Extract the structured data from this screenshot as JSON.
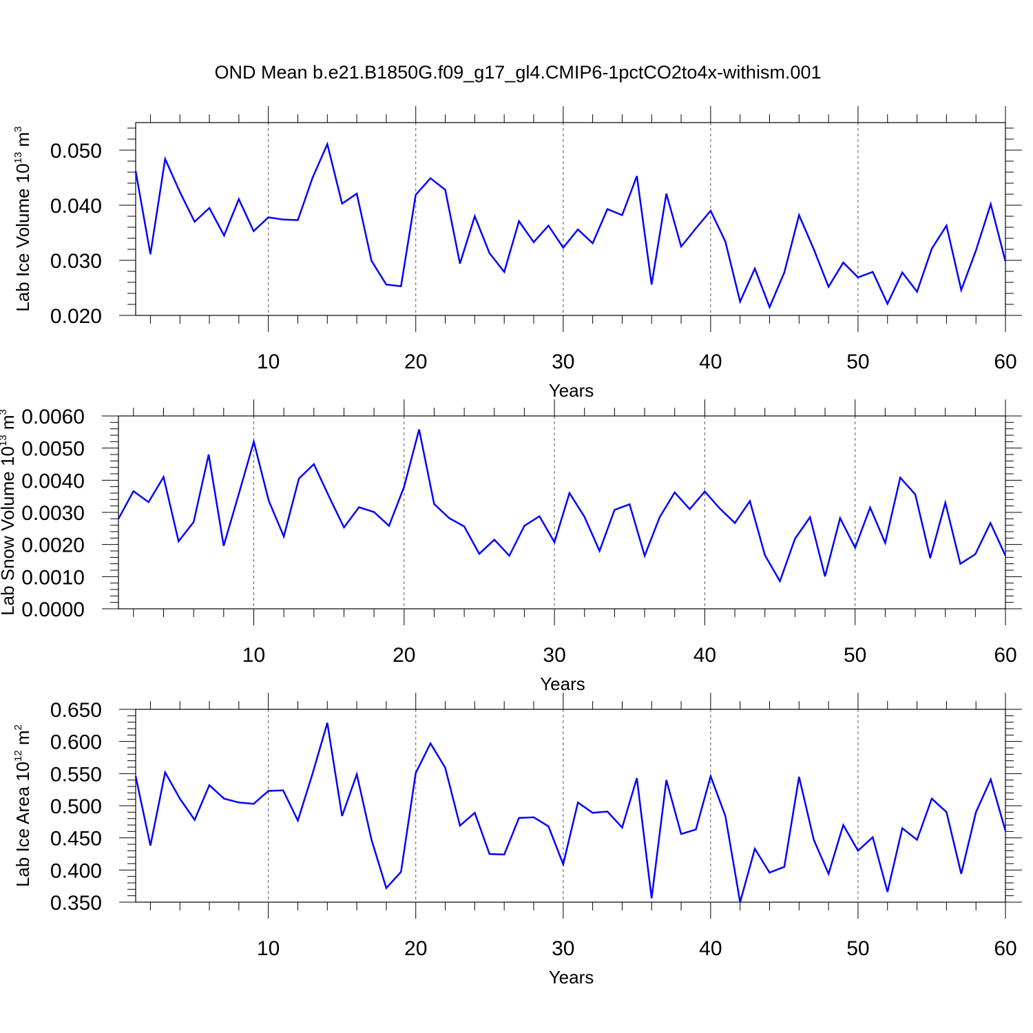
{
  "title": "OND Mean b.e21.B1850G.f09_g17_gl4.CMIP6-1pctCO2to4x-withism.001",
  "colors": {
    "line": "#0000ff",
    "axis": "#000000",
    "grid": "#555555"
  },
  "chart_data": [
    {
      "type": "line",
      "xlabel": "Years",
      "ylabel_parts": {
        "pre": "Lab Ice Volume 10",
        "exp": "13",
        "mid": " m",
        "unit_exp": "3"
      },
      "xlim": [
        1,
        60
      ],
      "ylim": [
        0.02,
        0.055
      ],
      "xticks": [
        10,
        20,
        30,
        40,
        50,
        60
      ],
      "xtick_labels": [
        "10",
        "20",
        "30",
        "40",
        "50",
        "60"
      ],
      "yticks": [
        0.02,
        0.03,
        0.04,
        0.05
      ],
      "ytick_labels": [
        "0.020",
        "0.030",
        "0.040",
        "0.050"
      ],
      "grid": "vertical dashed at major x ticks",
      "x": [
        1,
        2,
        3,
        4,
        5,
        6,
        7,
        8,
        9,
        10,
        11,
        12,
        13,
        14,
        15,
        16,
        17,
        18,
        19,
        20,
        21,
        22,
        23,
        24,
        25,
        26,
        27,
        28,
        29,
        30,
        31,
        32,
        33,
        34,
        35,
        36,
        37,
        38,
        39,
        40,
        41,
        42,
        43,
        44,
        45,
        46,
        47,
        48,
        49,
        50,
        51,
        52,
        53,
        54,
        55,
        56,
        57,
        58,
        59,
        60
      ],
      "values": [
        0.0462,
        0.0311,
        0.0484,
        0.0424,
        0.037,
        0.0395,
        0.0345,
        0.0411,
        0.0353,
        0.0378,
        0.0374,
        0.0373,
        0.045,
        0.0511,
        0.0403,
        0.0421,
        0.0299,
        0.0256,
        0.0253,
        0.0419,
        0.0449,
        0.0428,
        0.0294,
        0.038,
        0.0313,
        0.0279,
        0.0371,
        0.0333,
        0.0363,
        0.0323,
        0.0356,
        0.0331,
        0.0393,
        0.0382,
        0.0453,
        0.0256,
        0.0421,
        0.0325,
        0.0358,
        0.039,
        0.0334,
        0.0225,
        0.0285,
        0.0215,
        0.0278,
        0.0382,
        0.032,
        0.0252,
        0.0296,
        0.0269,
        0.0279,
        0.0221,
        0.0278,
        0.0243,
        0.0321,
        0.0363,
        0.0246,
        0.0318,
        0.0402,
        0.0298
      ]
    },
    {
      "type": "line",
      "xlabel": "Years",
      "ylabel_parts": {
        "pre": "Lab Snow Volume 10",
        "exp": "13",
        "mid": " m",
        "unit_exp": "3"
      },
      "xlim": [
        1,
        60
      ],
      "ylim": [
        0.0,
        0.006
      ],
      "xticks": [
        10,
        20,
        30,
        40,
        50,
        60
      ],
      "xtick_labels": [
        "10",
        "20",
        "30",
        "40",
        "50",
        "60"
      ],
      "yticks": [
        0.0,
        0.001,
        0.002,
        0.003,
        0.004,
        0.005,
        0.006
      ],
      "ytick_labels": [
        "0.0000",
        "0.0010",
        "0.0020",
        "0.0030",
        "0.0040",
        "0.0050",
        "0.0060"
      ],
      "grid": "vertical dashed at major x ticks",
      "x": [
        1,
        2,
        3,
        4,
        5,
        6,
        7,
        8,
        9,
        10,
        11,
        12,
        13,
        14,
        15,
        16,
        17,
        18,
        19,
        20,
        21,
        22,
        23,
        24,
        25,
        26,
        27,
        28,
        29,
        30,
        31,
        32,
        33,
        34,
        35,
        36,
        37,
        38,
        39,
        40,
        41,
        42,
        43,
        44,
        45,
        46,
        47,
        48,
        49,
        50,
        51,
        52,
        53,
        54,
        55,
        56,
        57,
        58,
        59,
        60
      ],
      "values": [
        0.0028,
        0.00366,
        0.00332,
        0.0041,
        0.0021,
        0.0027,
        0.0048,
        0.00196,
        0.00356,
        0.0052,
        0.00336,
        0.00225,
        0.00405,
        0.0045,
        0.0035,
        0.00253,
        0.00316,
        0.00301,
        0.00258,
        0.0038,
        0.00558,
        0.00326,
        0.00282,
        0.00256,
        0.00171,
        0.00215,
        0.00165,
        0.00258,
        0.00288,
        0.00207,
        0.0036,
        0.00286,
        0.0018,
        0.00308,
        0.00325,
        0.00165,
        0.00285,
        0.00362,
        0.0031,
        0.00365,
        0.00312,
        0.00267,
        0.00335,
        0.00167,
        0.00086,
        0.00218,
        0.00285,
        0.00101,
        0.00282,
        0.0019,
        0.00315,
        0.00205,
        0.00408,
        0.00356,
        0.00158,
        0.0033,
        0.0014,
        0.0017,
        0.00267,
        0.00165
      ]
    },
    {
      "type": "line",
      "xlabel": "Years",
      "ylabel_parts": {
        "pre": "Lab Ice Area 10",
        "exp": "12",
        "mid": " m",
        "unit_exp": "2"
      },
      "xlim": [
        1,
        60
      ],
      "ylim": [
        0.35,
        0.65
      ],
      "xticks": [
        10,
        20,
        30,
        40,
        50,
        60
      ],
      "xtick_labels": [
        "10",
        "20",
        "30",
        "40",
        "50",
        "60"
      ],
      "yticks": [
        0.35,
        0.4,
        0.45,
        0.5,
        0.55,
        0.6,
        0.65
      ],
      "ytick_labels": [
        "0.350",
        "0.400",
        "0.450",
        "0.500",
        "0.550",
        "0.600",
        "0.650"
      ],
      "grid": "vertical dashed at major x ticks",
      "x": [
        1,
        2,
        3,
        4,
        5,
        6,
        7,
        8,
        9,
        10,
        11,
        12,
        13,
        14,
        15,
        16,
        17,
        18,
        19,
        20,
        21,
        22,
        23,
        24,
        25,
        26,
        27,
        28,
        29,
        30,
        31,
        32,
        33,
        34,
        35,
        36,
        37,
        38,
        39,
        40,
        41,
        42,
        43,
        44,
        45,
        46,
        47,
        48,
        49,
        50,
        51,
        52,
        53,
        54,
        55,
        56,
        57,
        58,
        59,
        60
      ],
      "values": [
        0.546,
        0.438,
        0.552,
        0.511,
        0.478,
        0.532,
        0.511,
        0.505,
        0.503,
        0.523,
        0.524,
        0.477,
        0.55,
        0.629,
        0.484,
        0.549,
        0.447,
        0.372,
        0.397,
        0.551,
        0.597,
        0.559,
        0.469,
        0.489,
        0.425,
        0.424,
        0.481,
        0.482,
        0.468,
        0.409,
        0.505,
        0.489,
        0.491,
        0.466,
        0.543,
        0.356,
        0.54,
        0.456,
        0.463,
        0.546,
        0.484,
        0.35,
        0.433,
        0.396,
        0.405,
        0.545,
        0.447,
        0.394,
        0.47,
        0.43,
        0.451,
        0.366,
        0.465,
        0.447,
        0.511,
        0.49,
        0.394,
        0.49,
        0.541,
        0.461
      ]
    }
  ]
}
